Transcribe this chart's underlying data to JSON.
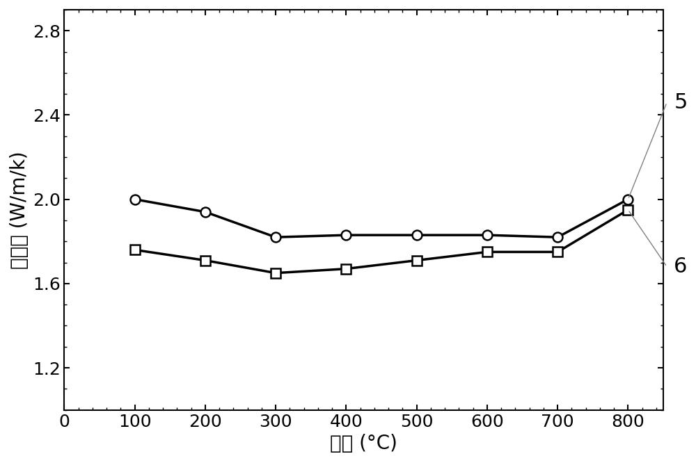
{
  "series5_x": [
    100,
    200,
    300,
    400,
    500,
    600,
    700,
    800
  ],
  "series5_y": [
    2.0,
    1.94,
    1.82,
    1.83,
    1.83,
    1.83,
    1.82,
    2.0
  ],
  "series6_x": [
    100,
    200,
    300,
    400,
    500,
    600,
    700,
    800
  ],
  "series6_y": [
    1.76,
    1.71,
    1.65,
    1.67,
    1.71,
    1.75,
    1.75,
    1.95
  ],
  "xlabel": "温度 (°C)",
  "ylabel": "热导率 (W/m/k)",
  "xlim": [
    0,
    850
  ],
  "ylim": [
    1.0,
    2.9
  ],
  "xticks": [
    0,
    100,
    200,
    300,
    400,
    500,
    600,
    700,
    800
  ],
  "yticks": [
    1.2,
    1.6,
    2.0,
    2.4,
    2.8
  ],
  "line_color": "#000000",
  "line_width": 2.5,
  "marker_circle": "o",
  "marker_square": "s",
  "marker_size": 10,
  "marker_facecolor": "#ffffff",
  "label5": "5",
  "label6": "6",
  "font_size_labels": 20,
  "font_size_ticks": 18,
  "font_size_annotations": 22,
  "ann5_from": [
    800,
    2.0
  ],
  "ann5_to_x": 2.46,
  "ann6_from": [
    800,
    1.95
  ],
  "ann6_to_x": 1.68
}
